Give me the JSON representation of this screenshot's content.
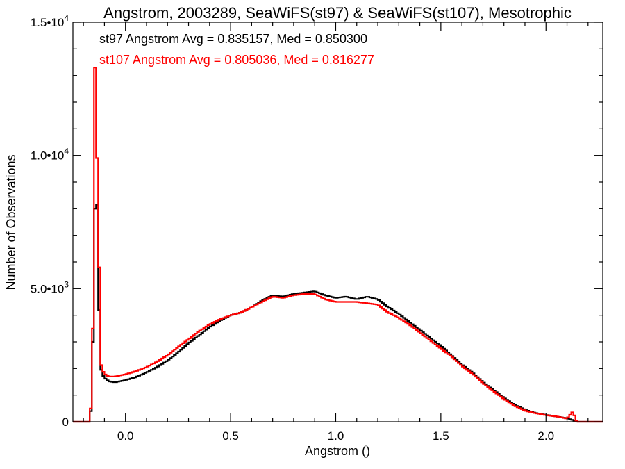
{
  "chart_data": {
    "type": "line",
    "title": "Angstrom, 2003289, SeaWiFS(st97) & SeaWiFS(st107), Mesotrophic",
    "xlabel": "Angstrom ()",
    "ylabel": "Number of Observations",
    "xlim": [
      -0.25,
      2.27
    ],
    "ylim": [
      0,
      15000
    ],
    "x_ticks": [
      {
        "value": 0.0,
        "label": "0.0"
      },
      {
        "value": 0.5,
        "label": "0.5"
      },
      {
        "value": 1.0,
        "label": "1.0"
      },
      {
        "value": 1.5,
        "label": "1.5"
      },
      {
        "value": 2.0,
        "label": "2.0"
      }
    ],
    "y_ticks": [
      {
        "value": 0,
        "mant": "0",
        "exp": ""
      },
      {
        "value": 5000,
        "mant": "5.0•10",
        "exp": "3"
      },
      {
        "value": 10000,
        "mant": "1.0•10",
        "exp": "4"
      },
      {
        "value": 15000,
        "mant": "1.5•10",
        "exp": "4"
      }
    ],
    "annotations": [
      {
        "text": "st97 Angstrom Avg = 0.835157, Med = 0.850300",
        "color": "#000000"
      },
      {
        "text": "st107 Angstrom Avg = 0.805036, Med = 0.816277",
        "color": "#ff0000"
      }
    ],
    "series": [
      {
        "color": "#000000",
        "points": [
          [
            -0.25,
            0
          ],
          [
            -0.17,
            0
          ],
          [
            -0.16,
            800
          ],
          [
            -0.15,
            5200
          ],
          [
            -0.145,
            8000
          ],
          [
            -0.14,
            8600
          ],
          [
            -0.13,
            7700
          ],
          [
            -0.125,
            4200
          ],
          [
            -0.12,
            2100
          ],
          [
            -0.11,
            1800
          ],
          [
            -0.1,
            1650
          ],
          [
            -0.08,
            1520
          ],
          [
            -0.05,
            1480
          ],
          [
            0.0,
            1560
          ],
          [
            0.05,
            1680
          ],
          [
            0.1,
            1850
          ],
          [
            0.15,
            2050
          ],
          [
            0.2,
            2300
          ],
          [
            0.25,
            2600
          ],
          [
            0.3,
            2950
          ],
          [
            0.35,
            3250
          ],
          [
            0.4,
            3550
          ],
          [
            0.45,
            3800
          ],
          [
            0.5,
            4000
          ],
          [
            0.55,
            4100
          ],
          [
            0.6,
            4300
          ],
          [
            0.65,
            4550
          ],
          [
            0.7,
            4750
          ],
          [
            0.75,
            4700
          ],
          [
            0.8,
            4800
          ],
          [
            0.85,
            4850
          ],
          [
            0.9,
            4900
          ],
          [
            0.95,
            4750
          ],
          [
            1.0,
            4650
          ],
          [
            1.05,
            4700
          ],
          [
            1.1,
            4600
          ],
          [
            1.15,
            4700
          ],
          [
            1.2,
            4600
          ],
          [
            1.25,
            4300
          ],
          [
            1.3,
            4050
          ],
          [
            1.35,
            3750
          ],
          [
            1.4,
            3450
          ],
          [
            1.45,
            3150
          ],
          [
            1.5,
            2850
          ],
          [
            1.55,
            2500
          ],
          [
            1.6,
            2150
          ],
          [
            1.65,
            1850
          ],
          [
            1.7,
            1500
          ],
          [
            1.75,
            1200
          ],
          [
            1.8,
            900
          ],
          [
            1.85,
            650
          ],
          [
            1.9,
            450
          ],
          [
            1.95,
            330
          ],
          [
            2.0,
            260
          ],
          [
            2.05,
            200
          ],
          [
            2.1,
            130
          ],
          [
            2.13,
            60
          ],
          [
            2.15,
            0
          ],
          [
            2.27,
            0
          ]
        ]
      },
      {
        "color": "#ff0000",
        "points": [
          [
            -0.25,
            0
          ],
          [
            -0.17,
            0
          ],
          [
            -0.16,
            1000
          ],
          [
            -0.15,
            6000
          ],
          [
            -0.145,
            13300
          ],
          [
            -0.14,
            9500
          ],
          [
            -0.135,
            9900
          ],
          [
            -0.13,
            9000
          ],
          [
            -0.125,
            5800
          ],
          [
            -0.12,
            2300
          ],
          [
            -0.11,
            1950
          ],
          [
            -0.1,
            1800
          ],
          [
            -0.08,
            1700
          ],
          [
            -0.05,
            1700
          ],
          [
            0.0,
            1780
          ],
          [
            0.05,
            1900
          ],
          [
            0.1,
            2050
          ],
          [
            0.15,
            2250
          ],
          [
            0.2,
            2500
          ],
          [
            0.25,
            2800
          ],
          [
            0.3,
            3100
          ],
          [
            0.35,
            3400
          ],
          [
            0.4,
            3650
          ],
          [
            0.45,
            3850
          ],
          [
            0.5,
            4000
          ],
          [
            0.55,
            4100
          ],
          [
            0.6,
            4300
          ],
          [
            0.65,
            4500
          ],
          [
            0.7,
            4700
          ],
          [
            0.75,
            4650
          ],
          [
            0.8,
            4750
          ],
          [
            0.85,
            4800
          ],
          [
            0.9,
            4800
          ],
          [
            0.95,
            4600
          ],
          [
            1.0,
            4500
          ],
          [
            1.05,
            4500
          ],
          [
            1.1,
            4500
          ],
          [
            1.15,
            4450
          ],
          [
            1.2,
            4400
          ],
          [
            1.25,
            4100
          ],
          [
            1.3,
            3900
          ],
          [
            1.35,
            3650
          ],
          [
            1.4,
            3350
          ],
          [
            1.45,
            3050
          ],
          [
            1.5,
            2750
          ],
          [
            1.55,
            2450
          ],
          [
            1.6,
            2100
          ],
          [
            1.65,
            1800
          ],
          [
            1.7,
            1450
          ],
          [
            1.75,
            1150
          ],
          [
            1.8,
            850
          ],
          [
            1.85,
            600
          ],
          [
            1.9,
            420
          ],
          [
            1.95,
            320
          ],
          [
            2.0,
            250
          ],
          [
            2.05,
            200
          ],
          [
            2.1,
            120
          ],
          [
            2.13,
            400
          ],
          [
            2.14,
            80
          ],
          [
            2.15,
            0
          ],
          [
            2.27,
            0
          ]
        ]
      }
    ]
  }
}
